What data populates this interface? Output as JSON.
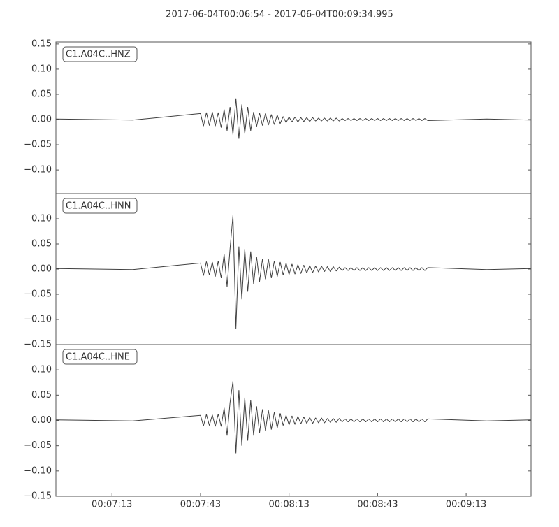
{
  "chart_data": [
    {
      "type": "line",
      "title": "2017-06-04T00:06:54  -  2017-06-04T00:09:34.995",
      "label": "C1.A04C..HNZ",
      "color": "#404040",
      "xlim": [
        414,
        574.995
      ],
      "ylim": [
        -0.147,
        0.154
      ],
      "yticks": [
        {
          "value": -0.1,
          "label": "−0.10"
        },
        {
          "value": -0.05,
          "label": "−0.05"
        },
        {
          "value": 0,
          "label": "0.00"
        },
        {
          "value": 0.05,
          "label": "0.05"
        },
        {
          "value": 0.1,
          "label": "0.10"
        },
        {
          "value": 0.15,
          "label": "0.15"
        }
      ],
      "x": [
        414,
        440,
        463,
        464,
        465,
        466,
        467,
        468,
        469,
        470,
        471,
        472,
        473,
        474,
        475,
        476,
        477,
        478,
        479,
        480,
        481,
        482,
        483,
        484,
        485,
        486,
        487,
        488,
        489,
        490,
        491,
        492,
        493,
        494,
        495,
        496,
        497,
        498,
        499,
        500,
        501,
        502,
        503,
        504,
        505,
        506,
        507,
        508,
        509,
        510,
        511,
        512,
        513,
        514,
        515,
        516,
        517,
        518,
        519,
        520,
        521,
        522,
        523,
        524,
        525,
        526,
        527,
        528,
        529,
        530,
        531,
        532,
        533,
        534,
        535,
        536,
        537,
        538,
        539,
        540,
        560,
        574.995
      ],
      "values": [
        0.001,
        -0.001,
        0.012,
        -0.013,
        0.014,
        -0.012,
        0.015,
        -0.013,
        0.014,
        -0.016,
        0.02,
        -0.022,
        0.025,
        -0.03,
        0.042,
        -0.038,
        0.03,
        -0.028,
        0.025,
        -0.022,
        0.015,
        -0.014,
        0.013,
        -0.012,
        0.012,
        -0.011,
        0.01,
        -0.01,
        0.009,
        -0.008,
        0.006,
        -0.006,
        0.005,
        -0.005,
        0.005,
        -0.005,
        0.004,
        -0.004,
        0.004,
        -0.004,
        0.004,
        -0.003,
        0.003,
        -0.003,
        0.003,
        -0.003,
        0.003,
        -0.003,
        0.003,
        -0.003,
        0.002,
        -0.002,
        0.002,
        -0.002,
        0.002,
        -0.002,
        0.002,
        -0.002,
        0.002,
        -0.002,
        0.002,
        -0.002,
        0.002,
        -0.002,
        0.002,
        -0.002,
        0.002,
        -0.002,
        0.002,
        -0.002,
        0.002,
        -0.002,
        0.002,
        -0.002,
        0.002,
        -0.002,
        0.002,
        -0.002,
        0.002,
        -0.002,
        0.001,
        -0.001
      ]
    },
    {
      "type": "line",
      "label": "C1.A04C..HNN",
      "color": "#404040",
      "xlim": [
        414,
        574.995
      ],
      "ylim": [
        -0.15,
        0.15
      ],
      "yticks": [
        {
          "value": -0.15,
          "label": "−0.15"
        },
        {
          "value": -0.1,
          "label": "−0.10"
        },
        {
          "value": -0.05,
          "label": "−0.05"
        },
        {
          "value": 0,
          "label": "0.00"
        },
        {
          "value": 0.05,
          "label": "0.05"
        },
        {
          "value": 0.1,
          "label": "0.10"
        }
      ],
      "x": [
        414,
        440,
        463,
        464,
        465,
        466,
        467,
        468,
        469,
        470,
        471,
        472,
        473,
        474,
        475,
        476,
        477,
        478,
        479,
        480,
        481,
        482,
        483,
        484,
        485,
        486,
        487,
        488,
        489,
        490,
        491,
        492,
        493,
        494,
        495,
        496,
        497,
        498,
        499,
        500,
        501,
        502,
        503,
        504,
        505,
        506,
        507,
        508,
        509,
        510,
        511,
        512,
        513,
        514,
        515,
        516,
        517,
        518,
        519,
        520,
        521,
        522,
        523,
        524,
        525,
        526,
        527,
        528,
        529,
        530,
        531,
        532,
        533,
        534,
        535,
        536,
        537,
        538,
        539,
        540,
        560,
        574.995
      ],
      "values": [
        0.001,
        -0.001,
        0.012,
        -0.013,
        0.015,
        -0.012,
        0.014,
        -0.015,
        0.016,
        -0.018,
        0.03,
        -0.035,
        0.04,
        0.107,
        -0.118,
        0.045,
        -0.06,
        0.04,
        -0.045,
        0.035,
        -0.03,
        0.025,
        -0.025,
        0.02,
        -0.02,
        0.02,
        -0.018,
        0.016,
        -0.015,
        0.014,
        -0.012,
        0.012,
        -0.011,
        0.01,
        -0.01,
        0.009,
        -0.009,
        0.008,
        -0.008,
        0.007,
        -0.007,
        0.006,
        -0.006,
        0.006,
        -0.005,
        0.005,
        -0.005,
        0.005,
        -0.004,
        0.004,
        -0.003,
        0.003,
        -0.003,
        0.003,
        -0.003,
        0.003,
        -0.003,
        0.003,
        -0.003,
        0.003,
        -0.003,
        0.003,
        -0.003,
        0.003,
        -0.003,
        0.003,
        -0.003,
        0.003,
        -0.003,
        0.003,
        -0.003,
        0.003,
        -0.003,
        0.003,
        -0.003,
        0.003,
        -0.003,
        0.003,
        -0.003,
        0.003,
        -0.001,
        0.001
      ]
    },
    {
      "type": "line",
      "label": "C1.A04C..HNE",
      "color": "#404040",
      "xlim": [
        414,
        574.995
      ],
      "ylim": [
        -0.15,
        0.15
      ],
      "yticks": [
        {
          "value": -0.15,
          "label": "−0.15"
        },
        {
          "value": -0.1,
          "label": "−0.10"
        },
        {
          "value": -0.05,
          "label": "−0.05"
        },
        {
          "value": 0,
          "label": "0.00"
        },
        {
          "value": 0.05,
          "label": "0.05"
        },
        {
          "value": 0.1,
          "label": "0.10"
        }
      ],
      "xticks": [
        {
          "value": 433,
          "label": "00:07:13"
        },
        {
          "value": 463,
          "label": "00:07:43"
        },
        {
          "value": 493,
          "label": "00:08:13"
        },
        {
          "value": 523,
          "label": "00:08:43"
        },
        {
          "value": 553,
          "label": "00:09:13"
        }
      ],
      "x": [
        414,
        440,
        463,
        464,
        465,
        466,
        467,
        468,
        469,
        470,
        471,
        472,
        473,
        474,
        475,
        476,
        477,
        478,
        479,
        480,
        481,
        482,
        483,
        484,
        485,
        486,
        487,
        488,
        489,
        490,
        491,
        492,
        493,
        494,
        495,
        496,
        497,
        498,
        499,
        500,
        501,
        502,
        503,
        504,
        505,
        506,
        507,
        508,
        509,
        510,
        511,
        512,
        513,
        514,
        515,
        516,
        517,
        518,
        519,
        520,
        521,
        522,
        523,
        524,
        525,
        526,
        527,
        528,
        529,
        530,
        531,
        532,
        533,
        534,
        535,
        536,
        537,
        538,
        539,
        540,
        560,
        574.995
      ],
      "values": [
        0.001,
        -0.001,
        0.01,
        -0.011,
        0.012,
        -0.01,
        0.011,
        -0.012,
        0.013,
        -0.012,
        0.025,
        -0.03,
        0.035,
        0.078,
        -0.065,
        0.06,
        -0.05,
        0.045,
        -0.04,
        0.04,
        -0.03,
        0.028,
        -0.025,
        0.022,
        -0.02,
        0.02,
        -0.018,
        0.016,
        -0.015,
        0.014,
        -0.01,
        0.01,
        -0.009,
        0.009,
        -0.008,
        0.008,
        -0.007,
        0.007,
        -0.006,
        0.006,
        -0.006,
        0.005,
        -0.005,
        0.005,
        -0.005,
        0.004,
        -0.004,
        0.004,
        -0.004,
        0.004,
        -0.003,
        0.003,
        -0.003,
        0.003,
        -0.003,
        0.003,
        -0.003,
        0.003,
        -0.003,
        0.003,
        -0.003,
        0.003,
        -0.003,
        0.003,
        -0.003,
        0.003,
        -0.003,
        0.003,
        -0.003,
        0.003,
        -0.003,
        0.003,
        -0.003,
        0.003,
        -0.003,
        0.003,
        -0.003,
        0.003,
        -0.003,
        0.003,
        -0.001,
        0.001
      ]
    }
  ]
}
